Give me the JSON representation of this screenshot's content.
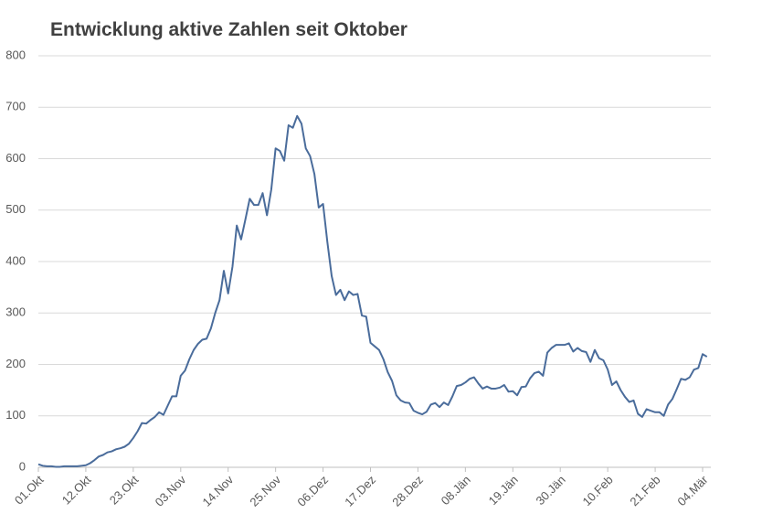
{
  "chart_data": {
    "type": "line",
    "title": "Entwicklung aktive Zahlen seit Oktober",
    "categories": [
      "01.Okt",
      null,
      null,
      null,
      null,
      null,
      null,
      null,
      null,
      null,
      null,
      "12.Okt",
      null,
      null,
      null,
      null,
      null,
      null,
      null,
      null,
      null,
      null,
      "23.Okt",
      null,
      null,
      null,
      null,
      null,
      null,
      null,
      null,
      null,
      null,
      "03.Nov",
      null,
      null,
      null,
      null,
      null,
      null,
      null,
      null,
      null,
      null,
      "14.Nov",
      null,
      null,
      null,
      null,
      null,
      null,
      null,
      null,
      null,
      null,
      "25.Nov",
      null,
      null,
      null,
      null,
      null,
      null,
      null,
      null,
      null,
      null,
      "06.Dez",
      null,
      null,
      null,
      null,
      null,
      null,
      null,
      null,
      null,
      null,
      "17.Dez",
      null,
      null,
      null,
      null,
      null,
      null,
      null,
      null,
      null,
      null,
      "28.Dez",
      null,
      null,
      null,
      null,
      null,
      null,
      null,
      null,
      null,
      null,
      "08.Jän",
      null,
      null,
      null,
      null,
      null,
      null,
      null,
      null,
      null,
      null,
      "19.Jän",
      null,
      null,
      null,
      null,
      null,
      null,
      null,
      null,
      null,
      null,
      "30.Jän",
      null,
      null,
      null,
      null,
      null,
      null,
      null,
      null,
      null,
      null,
      "10.Feb",
      null,
      null,
      null,
      null,
      null,
      null,
      null,
      null,
      null,
      null,
      "21.Feb",
      null,
      null,
      null,
      null,
      null,
      null,
      null,
      null,
      null,
      null,
      "04.Mär",
      null
    ],
    "values": [
      6,
      3,
      2,
      2,
      1,
      1,
      2,
      2,
      2,
      2,
      3,
      4,
      8,
      14,
      21,
      24,
      29,
      31,
      35,
      37,
      40,
      46,
      57,
      70,
      86,
      85,
      92,
      98,
      107,
      102,
      120,
      138,
      138,
      178,
      188,
      210,
      228,
      240,
      248,
      250,
      270,
      300,
      325,
      382,
      338,
      390,
      470,
      443,
      482,
      522,
      510,
      510,
      533,
      490,
      540,
      620,
      615,
      596,
      665,
      660,
      683,
      668,
      620,
      605,
      570,
      505,
      512,
      438,
      372,
      335,
      345,
      325,
      342,
      335,
      337,
      295,
      293,
      242,
      235,
      228,
      210,
      185,
      168,
      140,
      130,
      126,
      125,
      110,
      106,
      103,
      108,
      122,
      125,
      117,
      126,
      121,
      138,
      158,
      160,
      165,
      172,
      175,
      163,
      153,
      157,
      153,
      153,
      155,
      160,
      147,
      148,
      140,
      156,
      157,
      173,
      183,
      186,
      178,
      223,
      232,
      238,
      238,
      238,
      241,
      225,
      232,
      226,
      224,
      205,
      228,
      212,
      208,
      190,
      160,
      167,
      150,
      137,
      127,
      130,
      104,
      98,
      113,
      110,
      107,
      107,
      100,
      122,
      133,
      152,
      172,
      170,
      175,
      190,
      193,
      220,
      215
    ],
    "color": "#4a6c9b",
    "ylim": [
      0,
      800
    ],
    "yticks": [
      0,
      100,
      200,
      300,
      400,
      500,
      600,
      700,
      800
    ],
    "grid": true
  }
}
